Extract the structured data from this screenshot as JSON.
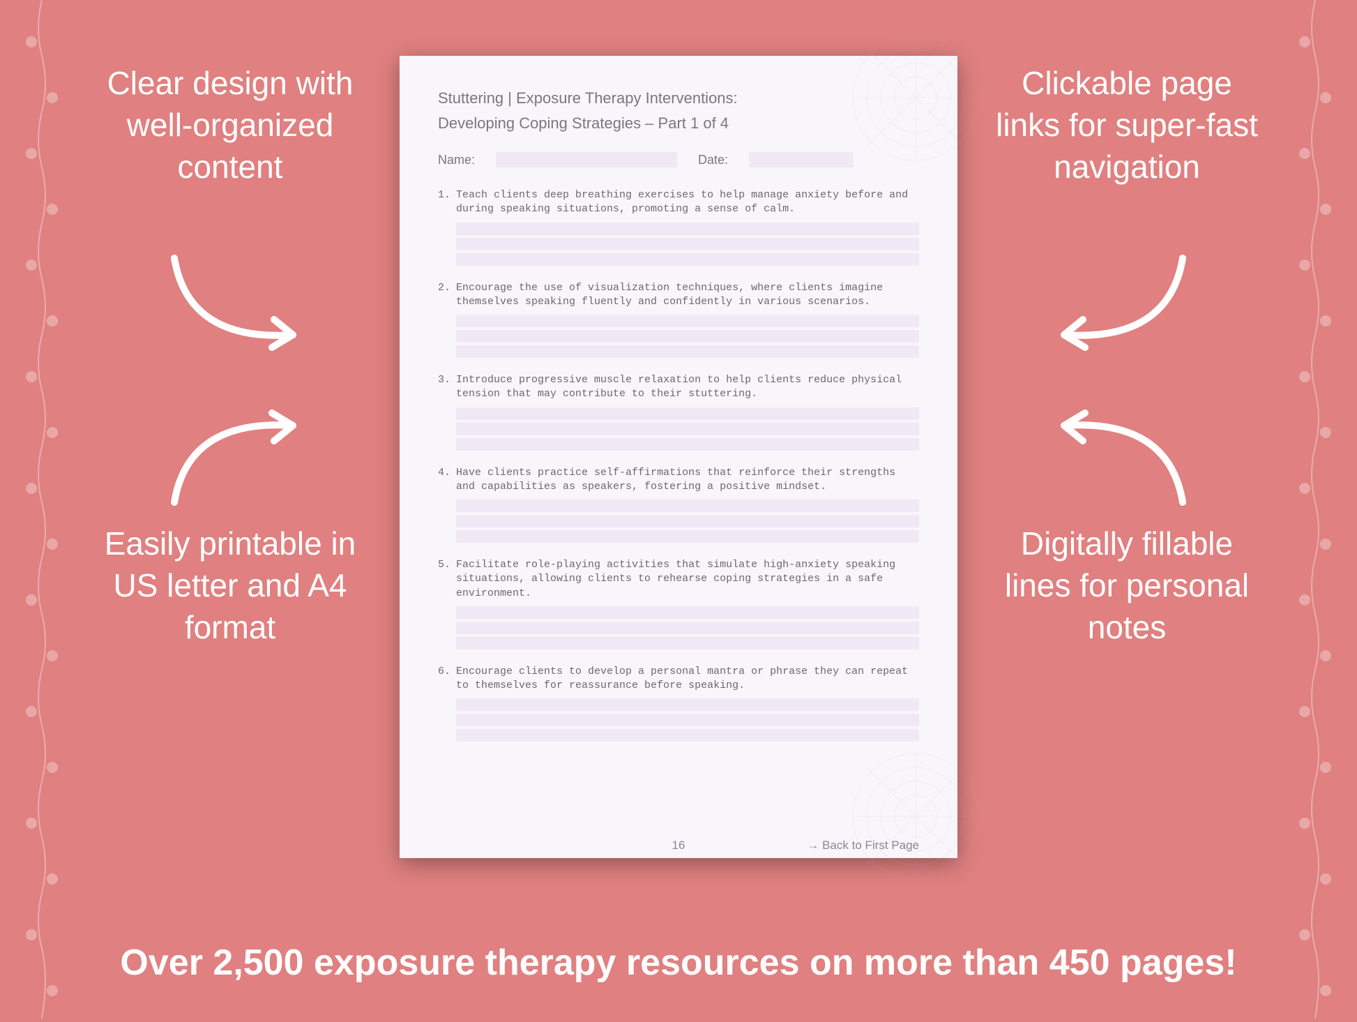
{
  "background_color": "#e08080",
  "page_bg": "#f9f6fb",
  "field_bg": "#f0e9f5",
  "text_color": "#7a7680",
  "mono_color": "#6b6770",
  "white": "#ffffff",
  "callouts": {
    "top_left": "Clear design with well-organized content",
    "top_right": "Clickable page links for super-fast navigation",
    "bottom_left": "Easily printable in US letter and A4 format",
    "bottom_right": "Digitally fillable lines for personal notes"
  },
  "banner": "Over 2,500 exposure therapy resources on more than 450 pages!",
  "document": {
    "title_line1": "Stuttering | Exposure Therapy Interventions:",
    "title_line2": "Developing Coping Strategies  – Part 1 of 4",
    "name_label": "Name:",
    "date_label": "Date:",
    "page_number": "16",
    "back_link": "→ Back to First Page",
    "items": [
      {
        "num": "1.",
        "text": "Teach clients deep breathing exercises to help manage anxiety before and during speaking situations, promoting a sense of calm."
      },
      {
        "num": "2.",
        "text": "Encourage the use of visualization techniques, where clients imagine themselves speaking fluently and confidently in various scenarios."
      },
      {
        "num": "3.",
        "text": "Introduce progressive muscle relaxation to help clients reduce physical tension that may contribute to their stuttering."
      },
      {
        "num": "4.",
        "text": "Have clients practice self-affirmations that reinforce their strengths and capabilities as speakers, fostering a positive mindset."
      },
      {
        "num": "5.",
        "text": "Facilitate role-playing activities that simulate high-anxiety speaking situations, allowing clients to rehearse coping strategies in a safe environment."
      },
      {
        "num": "6.",
        "text": "Encourage clients to develop a personal mantra or phrase they can repeat to themselves for reassurance before speaking."
      }
    ]
  }
}
